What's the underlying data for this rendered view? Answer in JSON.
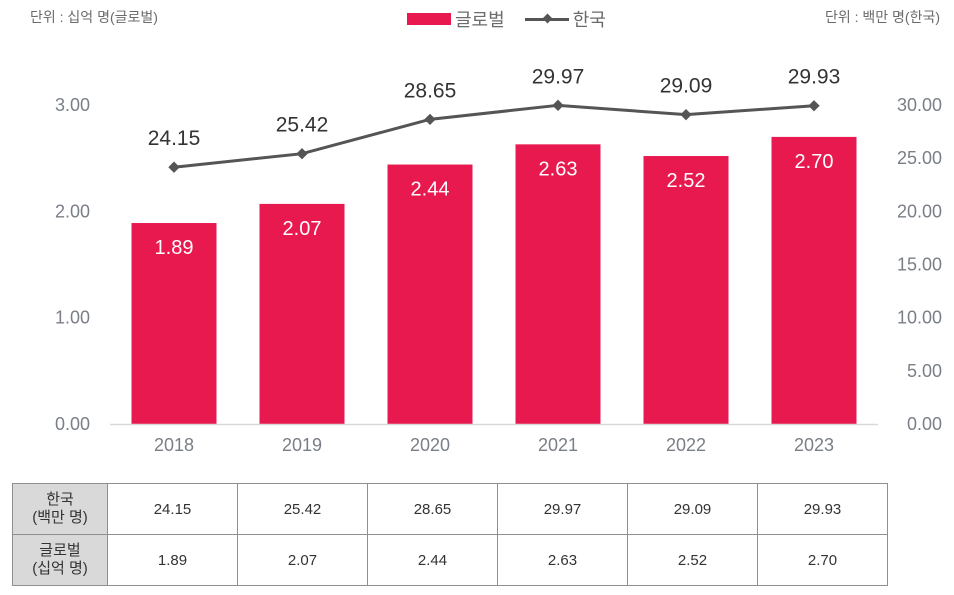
{
  "units": {
    "left": "단위 : 십억 명(글로벌)",
    "right": "단위 : 백만 명(한국)"
  },
  "legend": {
    "bar_label": "글로벌",
    "line_label": "한국"
  },
  "colors": {
    "bar": "#e8194f",
    "line": "#555555",
    "axis_text": "#7a7f87"
  },
  "chart_data": {
    "type": "bar+line",
    "title": "",
    "categories": [
      "2018",
      "2019",
      "2020",
      "2021",
      "2022",
      "2023"
    ],
    "series": [
      {
        "name": "글로벌",
        "type": "bar",
        "axis": "left",
        "values": [
          1.89,
          2.07,
          2.44,
          2.63,
          2.52,
          2.7
        ],
        "labels": [
          "1.89",
          "2.07",
          "2.44",
          "2.63",
          "2.52",
          "2.70"
        ]
      },
      {
        "name": "한국",
        "type": "line",
        "axis": "right",
        "values": [
          24.15,
          25.42,
          28.65,
          29.97,
          29.09,
          29.93
        ],
        "labels": [
          "24.15",
          "25.42",
          "28.65",
          "29.97",
          "29.09",
          "29.93"
        ]
      }
    ],
    "y_left": {
      "label": "단위 : 십억 명(글로벌)",
      "range": [
        0,
        3
      ],
      "ticks": [
        "0.00",
        "1.00",
        "2.00",
        "3.00"
      ]
    },
    "y_right": {
      "label": "단위 : 백만 명(한국)",
      "range": [
        0,
        30
      ],
      "ticks": [
        "0.00",
        "5.00",
        "10.00",
        "15.00",
        "20.00",
        "25.00",
        "30.00"
      ]
    },
    "grid": false,
    "legend_position": "top-center"
  },
  "table": {
    "rows": [
      {
        "header_line1": "한국",
        "header_line2": "(백만 명)",
        "values": [
          "24.15",
          "25.42",
          "28.65",
          "29.97",
          "29.09",
          "29.93"
        ]
      },
      {
        "header_line1": "글로벌",
        "header_line2": "(십억 명)",
        "values": [
          "1.89",
          "2.07",
          "2.44",
          "2.63",
          "2.52",
          "2.70"
        ]
      }
    ]
  }
}
